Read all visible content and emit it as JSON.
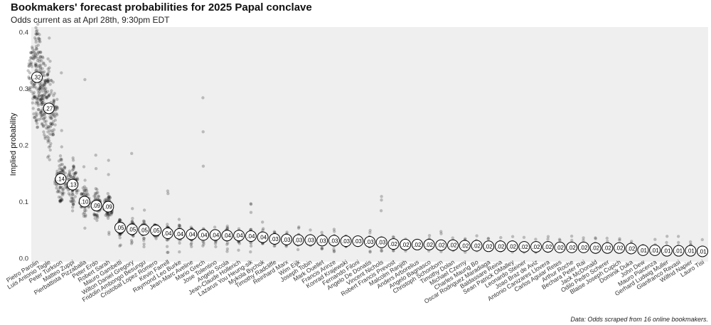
{
  "title": "Bookmakers' forecast probabilities for 2025 Papal conclave",
  "subtitle": "Odds current as at Aprl 28th, 9:30pm EDT",
  "caption": "Data: Odds scraped from 16 online bookmakers.",
  "chart_data": {
    "type": "scatter",
    "ylabel": "Implied probability",
    "xlabel": "",
    "ylim": [
      0,
      0.45
    ],
    "yticks": [
      0.0,
      0.1,
      0.2,
      0.3,
      0.4
    ],
    "ytick_labels": [
      "0.0",
      "0.1",
      "0.2",
      "0.3",
      "0.4"
    ],
    "grid": false,
    "background": "#efefef",
    "point_color": "#000000",
    "candidates": [
      {
        "name": "Pietro Parolin",
        "label": ".32",
        "median": 0.32,
        "spread": [
          0.21,
          0.45
        ]
      },
      {
        "name": "Luis Antonio Tagle",
        "label": ".27",
        "median": 0.265,
        "spread": [
          0.17,
          0.45
        ]
      },
      {
        "name": "Peter Turkson",
        "label": ".14",
        "median": 0.14,
        "spread": [
          0.06,
          0.43
        ]
      },
      {
        "name": "Matteo Zuppi",
        "label": ".13",
        "median": 0.13,
        "spread": [
          0.08,
          0.21
        ]
      },
      {
        "name": "Pierbattista Pizzaballa",
        "label": ".10",
        "median": 0.1,
        "spread": [
          0.05,
          0.35
        ]
      },
      {
        "name": "Peter Erdo",
        "label": ".09",
        "median": 0.093,
        "spread": [
          0.05,
          0.21
        ]
      },
      {
        "name": "Robert Sarah",
        "label": ".09",
        "median": 0.091,
        "spread": [
          0.03,
          0.2
        ]
      },
      {
        "name": "Mauro Gambetti",
        "label": ".05",
        "median": 0.054,
        "spread": [
          0.02,
          0.07
        ]
      },
      {
        "name": "Wilton Daniel Gregory",
        "label": ".05",
        "median": 0.051,
        "spread": [
          0.02,
          0.21
        ]
      },
      {
        "name": "Fridolin Ambongo Besungu",
        "label": ".05",
        "median": 0.05,
        "spread": [
          0.02,
          0.09
        ]
      },
      {
        "name": "Cristobal Lopez Romero",
        "label": ".05",
        "median": 0.049,
        "spread": [
          0.02,
          0.06
        ]
      },
      {
        "name": "Kevin Farrell",
        "label": ".04",
        "median": 0.044,
        "spread": [
          0.01,
          0.12
        ]
      },
      {
        "name": "Raymond Leo Burke",
        "label": ".04",
        "median": 0.043,
        "spread": [
          0.01,
          0.08
        ]
      },
      {
        "name": "Jean-Marc Aveline",
        "label": ".04",
        "median": 0.042,
        "spread": [
          0.02,
          0.06
        ]
      },
      {
        "name": "Mario Grech",
        "label": ".04",
        "median": 0.041,
        "spread": [
          0.02,
          0.35
        ]
      },
      {
        "name": "Jose Tolentino",
        "label": ".04",
        "median": 0.041,
        "spread": [
          0.02,
          0.06
        ]
      },
      {
        "name": "Angelo Scola",
        "label": ".04",
        "median": 0.04,
        "spread": [
          0.01,
          0.07
        ]
      },
      {
        "name": "Jean-Claude Hollerich",
        "label": ".04",
        "median": 0.04,
        "spread": [
          0.01,
          0.06
        ]
      },
      {
        "name": "Lazarus You Heung-sik",
        "label": ".04",
        "median": 0.039,
        "spread": [
          0.01,
          0.1
        ]
      },
      {
        "name": "Mykola Bychok",
        "label": ".04",
        "median": 0.037,
        "spread": [
          0.02,
          0.07
        ]
      },
      {
        "name": "Timothy Radcliffe",
        "label": ".03",
        "median": 0.034,
        "spread": [
          0.02,
          0.05
        ]
      },
      {
        "name": "Reinhard Marx",
        "label": ".03",
        "median": 0.033,
        "spread": [
          0.02,
          0.05
        ]
      },
      {
        "name": "Wim Eijk",
        "label": ".03",
        "median": 0.032,
        "spread": [
          0.01,
          0.06
        ]
      },
      {
        "name": "Joseph Tobin",
        "label": ".03",
        "median": 0.032,
        "spread": [
          0.02,
          0.05
        ]
      },
      {
        "name": "Mark Ouellet",
        "label": ".03",
        "median": 0.031,
        "spread": [
          0.01,
          0.07
        ]
      },
      {
        "name": "Francis Arinze",
        "label": ".03",
        "median": 0.031,
        "spread": [
          0.01,
          0.06
        ]
      },
      {
        "name": "Konrad Krajewski",
        "label": ".03",
        "median": 0.03,
        "spread": [
          0.02,
          0.04
        ]
      },
      {
        "name": "Fernando Filoni",
        "label": ".03",
        "median": 0.03,
        "spread": [
          0.02,
          0.04
        ]
      },
      {
        "name": "Angelo De Donatis",
        "label": ".03",
        "median": 0.029,
        "spread": [
          0.01,
          0.05
        ]
      },
      {
        "name": "Vincent Nichols",
        "label": ".03",
        "median": 0.028,
        "spread": [
          0.01,
          0.11
        ]
      },
      {
        "name": "Robert Francis Prevost",
        "label": ".02",
        "median": 0.025,
        "spread": [
          0.01,
          0.04
        ]
      },
      {
        "name": "Malcolm Ranjith",
        "label": ".02",
        "median": 0.024,
        "spread": [
          0.01,
          0.04
        ]
      },
      {
        "name": "Anders Arborelius",
        "label": ".02",
        "median": 0.024,
        "spread": [
          0.01,
          0.04
        ]
      },
      {
        "name": "Angelo Bagnasco",
        "label": ".02",
        "median": 0.024,
        "spread": [
          0.01,
          0.04
        ]
      },
      {
        "name": "Christoph Schonborn",
        "label": ".02",
        "median": 0.023,
        "spread": [
          0.01,
          0.05
        ]
      },
      {
        "name": "Timothy Dolan",
        "label": ".02",
        "median": 0.023,
        "spread": [
          0.01,
          0.04
        ]
      },
      {
        "name": "Michael Czerny",
        "label": ".02",
        "median": 0.022,
        "spread": [
          0.01,
          0.04
        ]
      },
      {
        "name": "Charles Maung Bo",
        "label": ".02",
        "median": 0.022,
        "spread": [
          0.01,
          0.04
        ]
      },
      {
        "name": "Oscar Rodriguez Maradiaga",
        "label": ".02",
        "median": 0.021,
        "spread": [
          0.01,
          0.04
        ]
      },
      {
        "name": "Baldassare Reina",
        "label": ".02",
        "median": 0.021,
        "spread": [
          0.01,
          0.04
        ]
      },
      {
        "name": "Sean Patrick OMalley",
        "label": ".02",
        "median": 0.021,
        "spread": [
          0.01,
          0.04
        ]
      },
      {
        "name": "Leonardo Steiner",
        "label": ".02",
        "median": 0.02,
        "spread": [
          0.01,
          0.04
        ]
      },
      {
        "name": "Joao Braz de Aviz",
        "label": ".02",
        "median": 0.02,
        "spread": [
          0.01,
          0.04
        ]
      },
      {
        "name": "Antonio Canizares Llovera",
        "label": ".02",
        "median": 0.02,
        "spread": [
          0.01,
          0.04
        ]
      },
      {
        "name": "Carlos Aguiar Retes",
        "label": ".02",
        "median": 0.019,
        "spread": [
          0.01,
          0.04
        ]
      },
      {
        "name": "Arthur Roche",
        "label": ".02",
        "median": 0.019,
        "spread": [
          0.01,
          0.04
        ]
      },
      {
        "name": "Bechara Peter Rai",
        "label": ".02",
        "median": 0.019,
        "spread": [
          0.01,
          0.04
        ]
      },
      {
        "name": "Jack McDonald",
        "label": ".02",
        "median": 0.018,
        "spread": [
          0.01,
          0.04
        ]
      },
      {
        "name": "Odilo Pedro Scherer",
        "label": ".02",
        "median": 0.018,
        "spread": [
          0.01,
          0.04
        ]
      },
      {
        "name": "Blaise Joseph Cupich",
        "label": ".02",
        "median": 0.018,
        "spread": [
          0.01,
          0.04
        ]
      },
      {
        "name": "Dominik Duka",
        "label": ".02",
        "median": 0.017,
        "spread": [
          0.01,
          0.04
        ]
      },
      {
        "name": "John Dew",
        "label": ".01",
        "median": 0.014,
        "spread": [
          0.01,
          0.03
        ]
      },
      {
        "name": "Mauro Piacenza",
        "label": ".01",
        "median": 0.014,
        "spread": [
          0.01,
          0.04
        ]
      },
      {
        "name": "Gerhard Ludwig Muller",
        "label": ".01",
        "median": 0.013,
        "spread": [
          0.01,
          0.04
        ]
      },
      {
        "name": "Gianfranco Ravasi",
        "label": ".01",
        "median": 0.013,
        "spread": [
          0.01,
          0.04
        ]
      },
      {
        "name": "Wilfrid Napier",
        "label": ".01",
        "median": 0.013,
        "spread": [
          0.01,
          0.04
        ]
      },
      {
        "name": "Lauro Tisi",
        "label": ".01",
        "median": 0.012,
        "spread": [
          0.01,
          0.04
        ]
      }
    ]
  }
}
